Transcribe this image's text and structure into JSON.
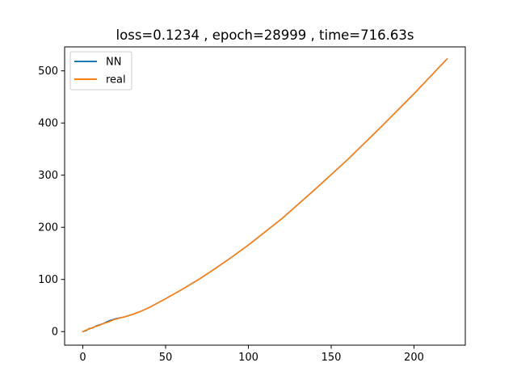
{
  "chart_data": {
    "type": "line",
    "title": "loss=0.1234 , epoch=28999 , time=716.63s",
    "xlabel": "",
    "ylabel": "",
    "xlim": [
      -11,
      231
    ],
    "ylim": [
      -26,
      546
    ],
    "xticks": [
      0,
      50,
      100,
      150,
      200
    ],
    "yticks": [
      0,
      100,
      200,
      300,
      400,
      500
    ],
    "legend_position": "top-left",
    "series": [
      {
        "name": "NN",
        "color": "#1f77b4",
        "x": [
          0,
          2,
          4,
          6,
          8,
          10,
          12,
          14,
          16,
          18,
          20,
          25,
          30,
          35,
          40,
          50,
          60,
          70,
          80,
          90,
          100,
          120,
          140,
          160,
          180,
          200,
          220
        ],
        "y": [
          0,
          2,
          6,
          7,
          11,
          13,
          15,
          18,
          21,
          23,
          25,
          28,
          33,
          39,
          46,
          63,
          81,
          100,
          121,
          143,
          166,
          216,
          272,
          330,
          392,
          456,
          523
        ]
      },
      {
        "name": "real",
        "color": "#ff7f0e",
        "x": [
          0,
          2,
          4,
          6,
          8,
          10,
          12,
          14,
          16,
          18,
          20,
          25,
          30,
          35,
          40,
          50,
          60,
          70,
          80,
          90,
          100,
          120,
          140,
          160,
          180,
          200,
          220
        ],
        "y": [
          0,
          3,
          5,
          8,
          10,
          12,
          15,
          17,
          19,
          22,
          24,
          28,
          33,
          39,
          46,
          63,
          81,
          100,
          121,
          143,
          166,
          216,
          272,
          330,
          392,
          456,
          523
        ]
      }
    ]
  }
}
